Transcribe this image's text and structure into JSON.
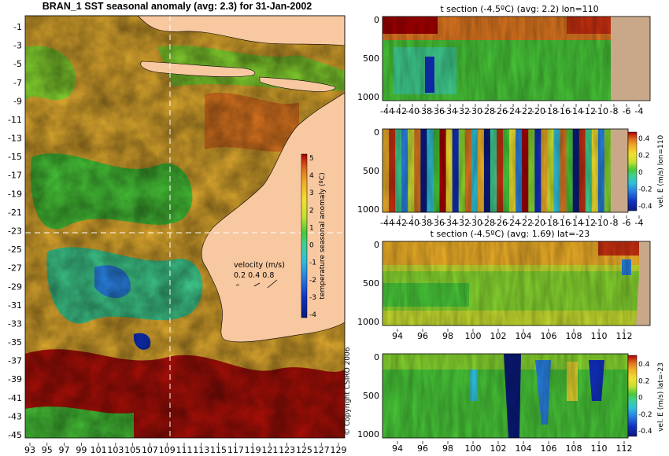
{
  "colors": {
    "land": "#f8c8a0",
    "grey_land": "#c8a888",
    "scale": [
      "#0a1a7a",
      "#1030c0",
      "#2880e0",
      "#30c0d8",
      "#40d090",
      "#48c838",
      "#88d830",
      "#c8e030",
      "#f0e030",
      "#f0b028",
      "#e07820",
      "#c83010",
      "#a00000"
    ]
  },
  "chart_data": [
    {
      "type": "heatmap",
      "title": "BRAN_1 SST seasonal anomaly (avg: 2.3) for 31-Jan-2002",
      "x_ticks": [
        "93",
        "95",
        "97",
        "99",
        "101",
        "103",
        "105",
        "107",
        "109",
        "111",
        "113",
        "115",
        "117",
        "119",
        "121",
        "123",
        "125",
        "127",
        "129"
      ],
      "y_ticks": [
        "-1",
        "-3",
        "-5",
        "-7",
        "-9",
        "-11",
        "-13",
        "-15",
        "-17",
        "-19",
        "-21",
        "-23",
        "-25",
        "-27",
        "-29",
        "-31",
        "-33",
        "-35",
        "-37",
        "-39",
        "-41",
        "-43",
        "-45"
      ],
      "xlim": [
        93,
        130
      ],
      "ylim": [
        -45,
        0
      ],
      "colorbar": {
        "label": "temperature seasonal anomaly (ºC)",
        "ticks": [
          "5",
          "4",
          "3",
          "2",
          "1",
          "0",
          "-1",
          "-2",
          "-3",
          "-4"
        ],
        "range": [
          -4,
          5
        ]
      },
      "velocity_legend": {
        "title": "velocity (m/s)",
        "values": "0.2 0.4 0.8"
      },
      "section_lines": {
        "lon": 110,
        "lat": -23
      }
    },
    {
      "type": "heatmap",
      "title": "t section (-4.5ºC) (avg: 2.2) lon=110",
      "x_ticks": [
        "-44",
        "-42",
        "-40",
        "-38",
        "-36",
        "-34",
        "-32",
        "-30",
        "-28",
        "-26",
        "-24",
        "-22",
        "-20",
        "-18",
        "-16",
        "-14",
        "-12",
        "-10",
        "-8",
        "-6",
        "-4"
      ],
      "y_ticks": [
        "0",
        "500",
        "1000"
      ],
      "xlim": [
        -45,
        -2
      ],
      "ylim": [
        1050,
        0
      ]
    },
    {
      "type": "heatmap",
      "title": "",
      "x_ticks": [
        "-44",
        "-42",
        "-40",
        "-38",
        "-36",
        "-34",
        "-32",
        "-30",
        "-28",
        "-26",
        "-24",
        "-22",
        "-20",
        "-18",
        "-16",
        "-14",
        "-12",
        "-10",
        "-8",
        "-6",
        "-4"
      ],
      "y_ticks": [
        "0",
        "500",
        "1000"
      ],
      "xlim": [
        -45,
        -2
      ],
      "ylim": [
        1050,
        0
      ],
      "colorbar": {
        "label": "vel. E (m/s) lon=110",
        "ticks": [
          "0.4",
          "0.2",
          "0",
          "-0.2",
          "-0.4"
        ],
        "range": [
          -0.4,
          0.4
        ]
      }
    },
    {
      "type": "heatmap",
      "title": "t section (-4.5ºC) (avg: 1.69) lat=-23",
      "x_ticks": [
        "94",
        "96",
        "98",
        "100",
        "102",
        "104",
        "106",
        "108",
        "110",
        "112"
      ],
      "y_ticks": [
        "0",
        "500",
        "1000"
      ],
      "xlim": [
        93,
        114
      ],
      "ylim": [
        1050,
        0
      ]
    },
    {
      "type": "heatmap",
      "title": "",
      "x_ticks": [
        "94",
        "96",
        "98",
        "100",
        "102",
        "104",
        "106",
        "108",
        "110",
        "112"
      ],
      "y_ticks": [
        "0",
        "500",
        "1000"
      ],
      "xlim": [
        93,
        114
      ],
      "ylim": [
        1050,
        0
      ],
      "colorbar": {
        "label": "vel. E (m/s) lat=-23",
        "ticks": [
          "0.4",
          "0.2",
          "0",
          "-0.2",
          "-0.4"
        ],
        "range": [
          -0.4,
          0.4
        ]
      }
    }
  ],
  "copyright": "© Copyright CSIRO 2006"
}
